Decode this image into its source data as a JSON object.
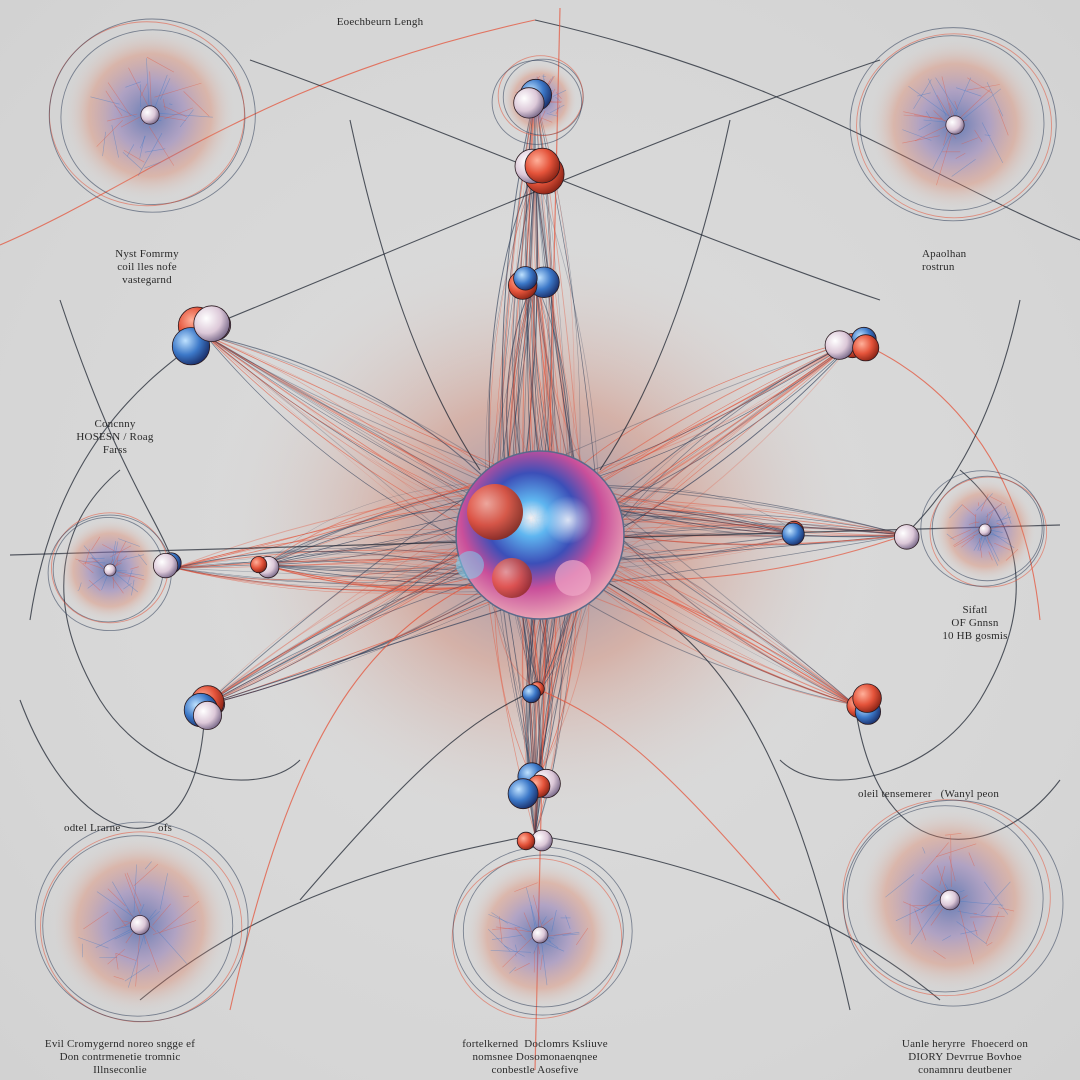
{
  "palette": {
    "background": "#d8d8d8",
    "ink": "#2b3a55",
    "accent_red": "#e4533a",
    "accent_blue": "#3c78c8",
    "accent_pink": "#e86aa8"
  },
  "labels": {
    "top": "Eoechbeurn Lengh",
    "upper_left": "Nyst Fomrmy\ncoil lles nofe\nvastegarnd",
    "upper_right": "Apaolhan\nrostrun",
    "mid_left": "Concnny\nHOSESN / Roag\nFarss",
    "mid_right": "Sifatl\nOF Gnnsn\n10 HB gosmis",
    "lower_left_a": "odtel Lrarne",
    "lower_left_b": "ofs",
    "lower_right": "oleil tensemerer   (Wanyl peon",
    "bottom_left": "Evil Cromygernd noreo sngge ef\nDon contrmenetie tromnic\nIllnseconlie",
    "bottom_center": "fortelkerned  Doclomrs Ksliuve\nnomsnee Dosomonaenqnee\nconbestle Aosefive",
    "bottom_right": "Uanle heryrre  Fhoecerd on\nDIORY Devrrue Bovhoe\nconamnru deutbener"
  },
  "icons": {
    "central_sphere": "nucleus-sphere-icon",
    "node": "particle-cluster-icon",
    "nebula": "nebula-orbit-icon"
  }
}
